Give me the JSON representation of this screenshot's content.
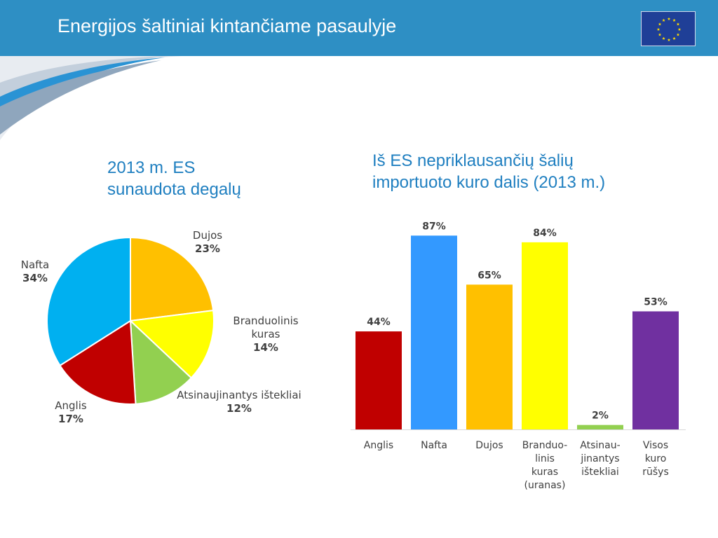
{
  "header": {
    "title": "Energijos šaltiniai kintančiame pasaulyje",
    "flag_icon": "eu-flag-icon",
    "colors": {
      "band": "#2e8fc4",
      "flag_field": "#1f3f97",
      "flag_stars": "#ffdd00"
    }
  },
  "chart_data": [
    {
      "type": "pie",
      "title": "2013 m. ES sunaudota degalų",
      "title_lines": [
        "2013 m. ES",
        "sunaudota degalų"
      ],
      "slices": [
        {
          "label": "Dujos",
          "label_lines": [
            "Dujos"
          ],
          "value": 23,
          "pct_label": "23%",
          "color": "#ffc000"
        },
        {
          "label": "Branduolinis kuras",
          "label_lines": [
            "Branduolinis",
            "kuras"
          ],
          "value": 14,
          "pct_label": "14%",
          "color": "#ffff00"
        },
        {
          "label": "Atsinaujinantys ištekliai",
          "label_lines": [
            "Atsinaujinantys ištekliai"
          ],
          "value": 12,
          "pct_label": "12%",
          "color": "#92d050"
        },
        {
          "label": "Anglis",
          "label_lines": [
            "Anglis"
          ],
          "value": 17,
          "pct_label": "17%",
          "color": "#c00000"
        },
        {
          "label": "Nafta",
          "label_lines": [
            "Nafta"
          ],
          "value": 34,
          "pct_label": "34%",
          "color": "#00b0f0"
        }
      ]
    },
    {
      "type": "bar",
      "title": "Iš ES nepriklausančių šalių importuoto kuro dalis (2013 m.)",
      "title_lines": [
        "Iš ES nepriklausančių šalių",
        "importuoto kuro dalis (2013 m.)"
      ],
      "categories": [
        "Anglis",
        "Nafta",
        "Dujos",
        "Branduolinis kuras (uranas)",
        "Atsinaujinantys ištekliai",
        "Visos kuro rūšys"
      ],
      "category_lines": [
        [
          "Anglis"
        ],
        [
          "Nafta"
        ],
        [
          "Dujos"
        ],
        [
          "Branduo-",
          "linis",
          "kuras",
          "(uranas)"
        ],
        [
          "Atsinau-",
          "jinantys",
          "ištekliai"
        ],
        [
          "Visos",
          "kuro",
          "rūšys"
        ]
      ],
      "values": [
        44,
        87,
        65,
        84,
        2,
        53
      ],
      "value_labels": [
        "44%",
        "87%",
        "65%",
        "84%",
        "2%",
        "53%"
      ],
      "colors": [
        "#c00000",
        "#3399ff",
        "#ffc000",
        "#ffff00",
        "#92d050",
        "#7030a0"
      ],
      "ylim": [
        0,
        100
      ],
      "grid": false
    }
  ]
}
